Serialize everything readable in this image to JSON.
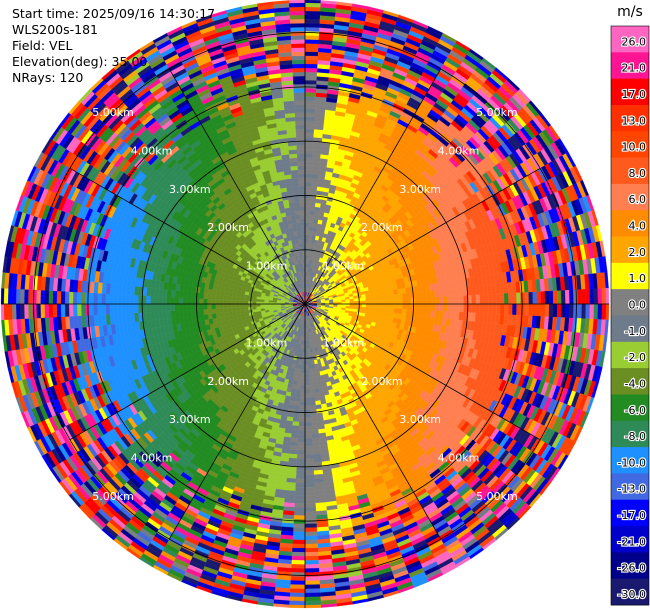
{
  "header": {
    "start_time": "Start time: 2025/09/16 14:30:17",
    "instrument": "WLS200s-181",
    "field": "Field: VEL",
    "elevation": "Elevation(deg): 35.00",
    "nrays": "NRays: 120"
  },
  "chart_data": {
    "type": "heatmap",
    "projection": "polar-ppi",
    "field": "VEL",
    "units": "m/s",
    "n_rays": 120,
    "elevation_deg": 35.0,
    "range_rings_km": [
      1.0,
      2.0,
      3.0,
      4.0,
      5.0
    ],
    "range_ring_labels": [
      "1.00km",
      "2.00km",
      "3.00km",
      "4.00km",
      "5.00km"
    ],
    "max_range_km": 5.6,
    "radial_lines_deg": [
      0,
      30,
      60,
      90,
      120,
      150,
      180,
      210,
      240,
      270,
      300,
      330
    ],
    "colorbar": {
      "label": "m/s",
      "ticks": [
        "26.0",
        "21.0",
        "17.0",
        "13.0",
        "10.0",
        "8.0",
        "6.0",
        "4.0",
        "2.0",
        "1.0",
        "0.0",
        "-1.0",
        "-2.0",
        "-4.0",
        "-6.0",
        "-8.0",
        "-10.0",
        "-13.0",
        "-17.0",
        "-21.0",
        "-26.0",
        "-30.0"
      ],
      "bins": [
        {
          "min": 26,
          "max": 30,
          "color": "#ff66c2"
        },
        {
          "min": 21,
          "max": 26,
          "color": "#ff1493"
        },
        {
          "min": 17,
          "max": 21,
          "color": "#ff0000"
        },
        {
          "min": 13,
          "max": 17,
          "color": "#ff3000"
        },
        {
          "min": 10,
          "max": 13,
          "color": "#ff4500"
        },
        {
          "min": 8,
          "max": 10,
          "color": "#ff5a1e"
        },
        {
          "min": 6,
          "max": 8,
          "color": "#ff7f50"
        },
        {
          "min": 4,
          "max": 6,
          "color": "#ff8c00"
        },
        {
          "min": 2,
          "max": 4,
          "color": "#ffa500"
        },
        {
          "min": 1,
          "max": 2,
          "color": "#ffff00"
        },
        {
          "min": 0,
          "max": 1,
          "color": "#808080"
        },
        {
          "min": -1,
          "max": 0,
          "color": "#6e7b8b"
        },
        {
          "min": -2,
          "max": -1,
          "color": "#9acd32"
        },
        {
          "min": -4,
          "max": -2,
          "color": "#6b8e23"
        },
        {
          "min": -6,
          "max": -4,
          "color": "#228b22"
        },
        {
          "min": -8,
          "max": -6,
          "color": "#2e8b57"
        },
        {
          "min": -10,
          "max": -8,
          "color": "#1e90ff"
        },
        {
          "min": -13,
          "max": -10,
          "color": "#4169e1"
        },
        {
          "min": -17,
          "max": -13,
          "color": "#0000ff"
        },
        {
          "min": -21,
          "max": -17,
          "color": "#0000cd"
        },
        {
          "min": -26,
          "max": -21,
          "color": "#00008b"
        },
        {
          "min": -30,
          "max": -26,
          "color": "#191970"
        }
      ]
    },
    "wind_model": {
      "description_source": "estimated from image",
      "toward_azimuth_deg": 90,
      "speed_at_km": [
        {
          "range_km": 0.0,
          "speed": 0.5
        },
        {
          "range_km": 0.8,
          "speed": 2.0
        },
        {
          "range_km": 1.5,
          "speed": 3.0
        },
        {
          "range_km": 2.5,
          "speed": 6.0
        },
        {
          "range_km": 3.3,
          "speed": 9.0
        },
        {
          "range_km": 3.8,
          "speed": 10.0
        }
      ],
      "noise_onset_km": 3.6,
      "noise_full_km": 4.6
    }
  }
}
